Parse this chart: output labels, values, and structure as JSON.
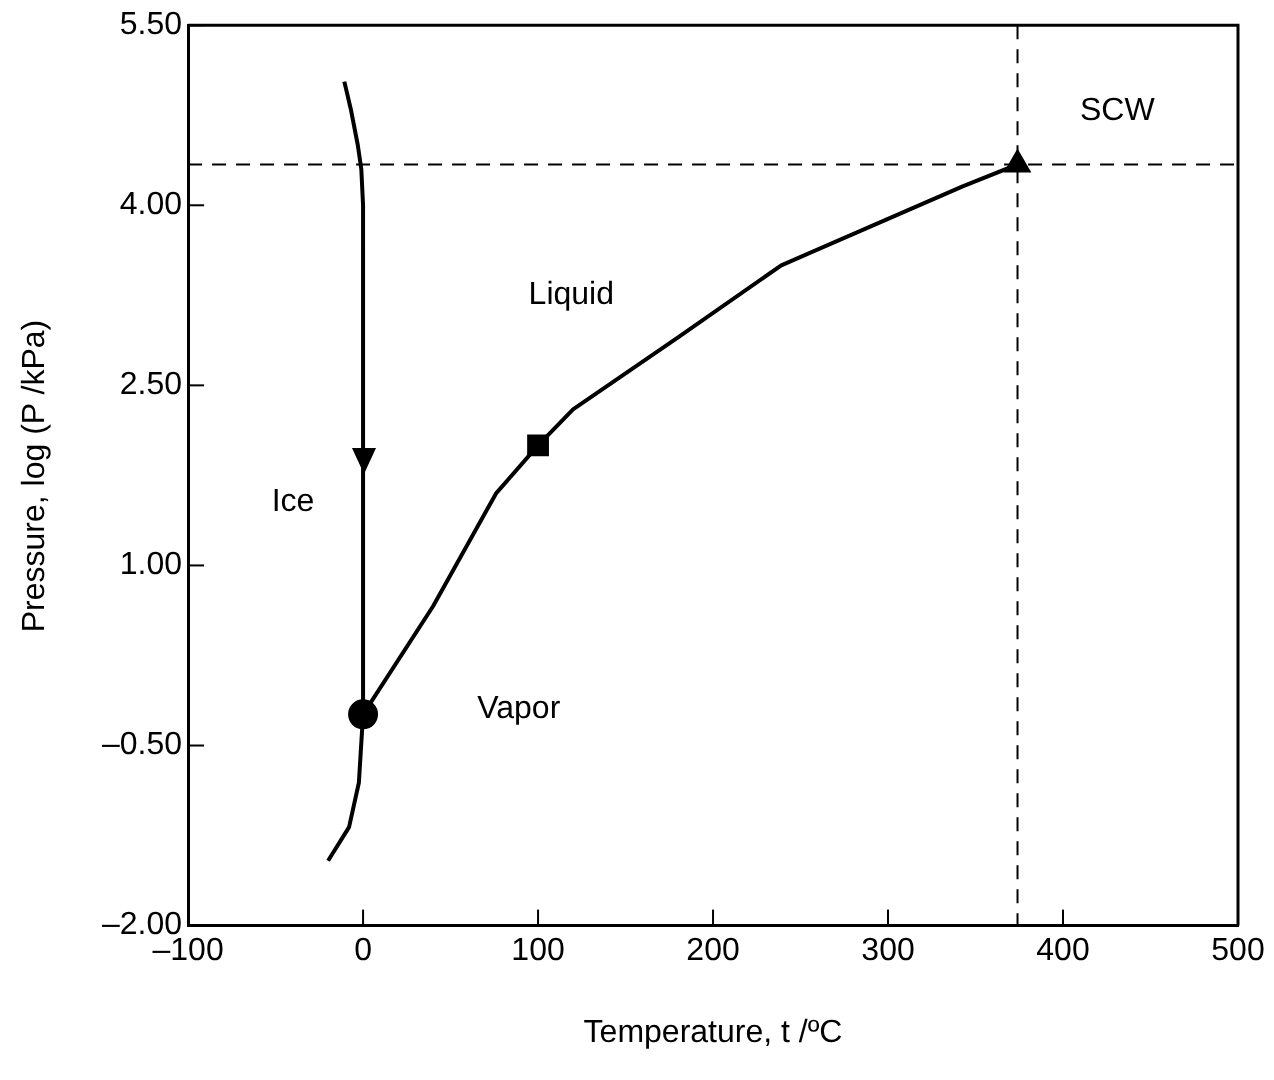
{
  "chart_data": {
    "type": "line",
    "xlabel": "Temperature, t /ºC",
    "ylabel": "Pressure, log (P /kPa)",
    "xlim": [
      -100,
      500
    ],
    "xticks": [
      {
        "value": -100,
        "label": "–100"
      },
      0,
      100,
      200,
      300,
      400,
      500
    ],
    "ylim": [
      -2,
      5.5
    ],
    "yticks": [
      {
        "value": -2,
        "label": "–2.00"
      },
      {
        "value": -0.5,
        "label": "–0.50"
      },
      {
        "value": 1,
        "label": "1.00"
      },
      {
        "value": 2.5,
        "label": "2.50"
      },
      {
        "value": 4,
        "label": "4.00"
      },
      {
        "value": 5.5,
        "label": "5.50"
      }
    ],
    "grid": false,
    "legend": false,
    "marker": "none",
    "line_style": "solid",
    "series": [
      {
        "color": "#000000",
        "x": [
          -10.7,
          -7,
          -3,
          -1,
          0,
          0
        ],
        "values": [
          5.03,
          4.8,
          4.5,
          4.3,
          4.0,
          -0.24
        ]
      },
      {
        "color": "#000000",
        "x": [
          0,
          -2.4,
          -8,
          -20
        ],
        "values": [
          -0.24,
          -0.81,
          -1.18,
          -1.46
        ]
      },
      {
        "color": "#000000",
        "x": [
          0,
          40,
          76,
          100,
          120,
          180,
          239,
          299,
          343,
          374
        ],
        "values": [
          -0.24,
          0.66,
          1.6,
          2.0,
          2.3,
          2.9,
          3.5,
          3.88,
          4.16,
          4.34
        ]
      },
      {
        "type": "scatter",
        "marker": "circle",
        "color": "#000000",
        "x": [
          0
        ],
        "values": [
          -0.24
        ]
      },
      {
        "type": "scatter",
        "marker": "square",
        "color": "#000000",
        "x": [
          100
        ],
        "values": [
          2.0
        ]
      },
      {
        "type": "scatter",
        "marker": "triangle",
        "color": "#000000",
        "x": [
          374
        ],
        "values": [
          4.34
        ]
      }
    ],
    "ref_lines": [
      {
        "axis": "y",
        "value": 4.34,
        "line_style": "dashed",
        "color": "#000000"
      },
      {
        "axis": "x",
        "value": 374,
        "line_style": "dashed",
        "color": "#000000"
      }
    ],
    "annotations": [
      "Liquid",
      "Ice",
      "Vapor",
      "SCW"
    ]
  }
}
